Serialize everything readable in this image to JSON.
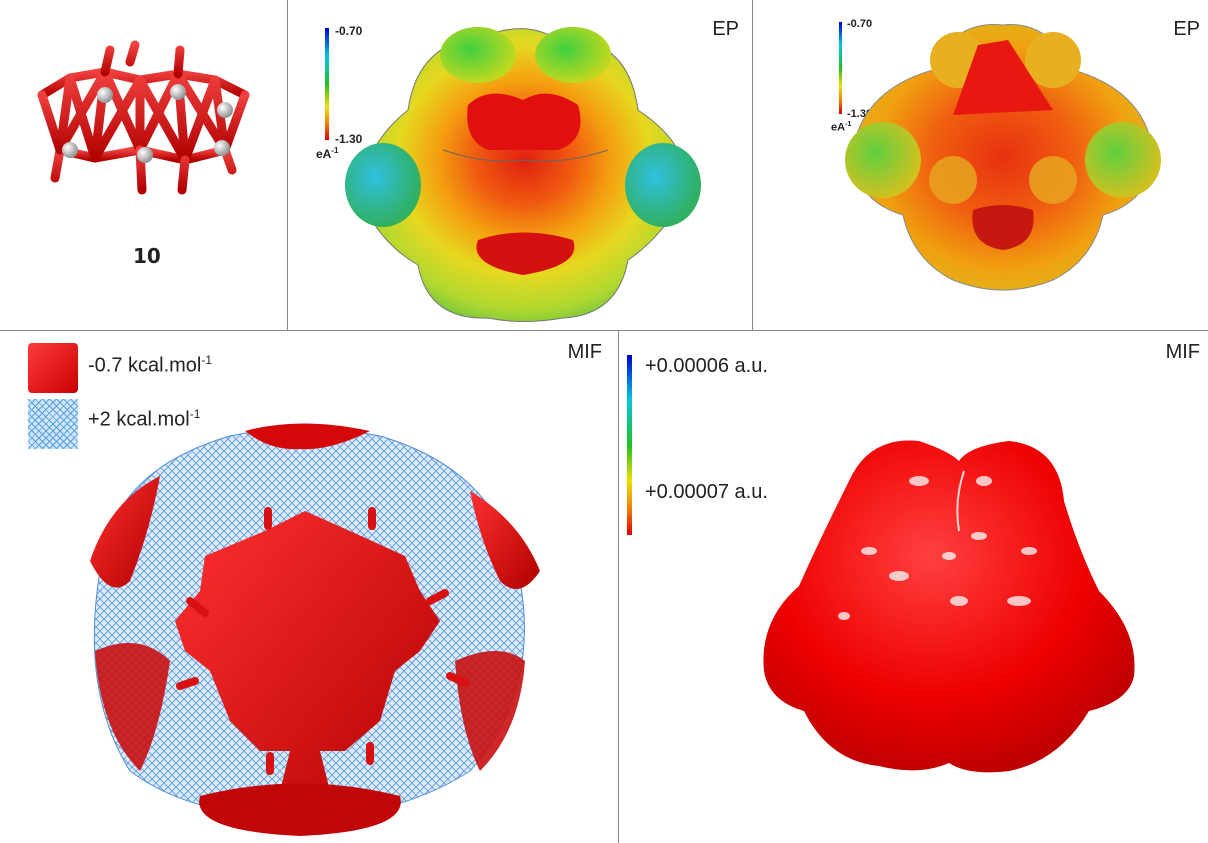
{
  "figure": {
    "compound_label": "10",
    "panel_b": {
      "tag": "EP",
      "scale": {
        "top": "-0.70",
        "bottom": "-1.30",
        "unit": "eA",
        "unit_sup": "-1"
      }
    },
    "panel_c": {
      "tag": "EP",
      "scale": {
        "top": "-0.70",
        "bottom": "-1.30",
        "unit": "eA",
        "unit_sup": "-1"
      }
    },
    "panel_d": {
      "tag": "MIF",
      "legend": [
        {
          "value": "-0.7 kcal.mol",
          "sup": "-1"
        },
        {
          "value": "+2 kcal.mol",
          "sup": "-1"
        }
      ]
    },
    "panel_e": {
      "tag": "MIF",
      "scale": {
        "top": "+0.00006 a.u.",
        "bottom": "+0.00007 a.u."
      }
    }
  },
  "colors": {
    "surface_red": "#e41010",
    "mesh_blue": "#4f8fd6",
    "divider": "#888888"
  }
}
